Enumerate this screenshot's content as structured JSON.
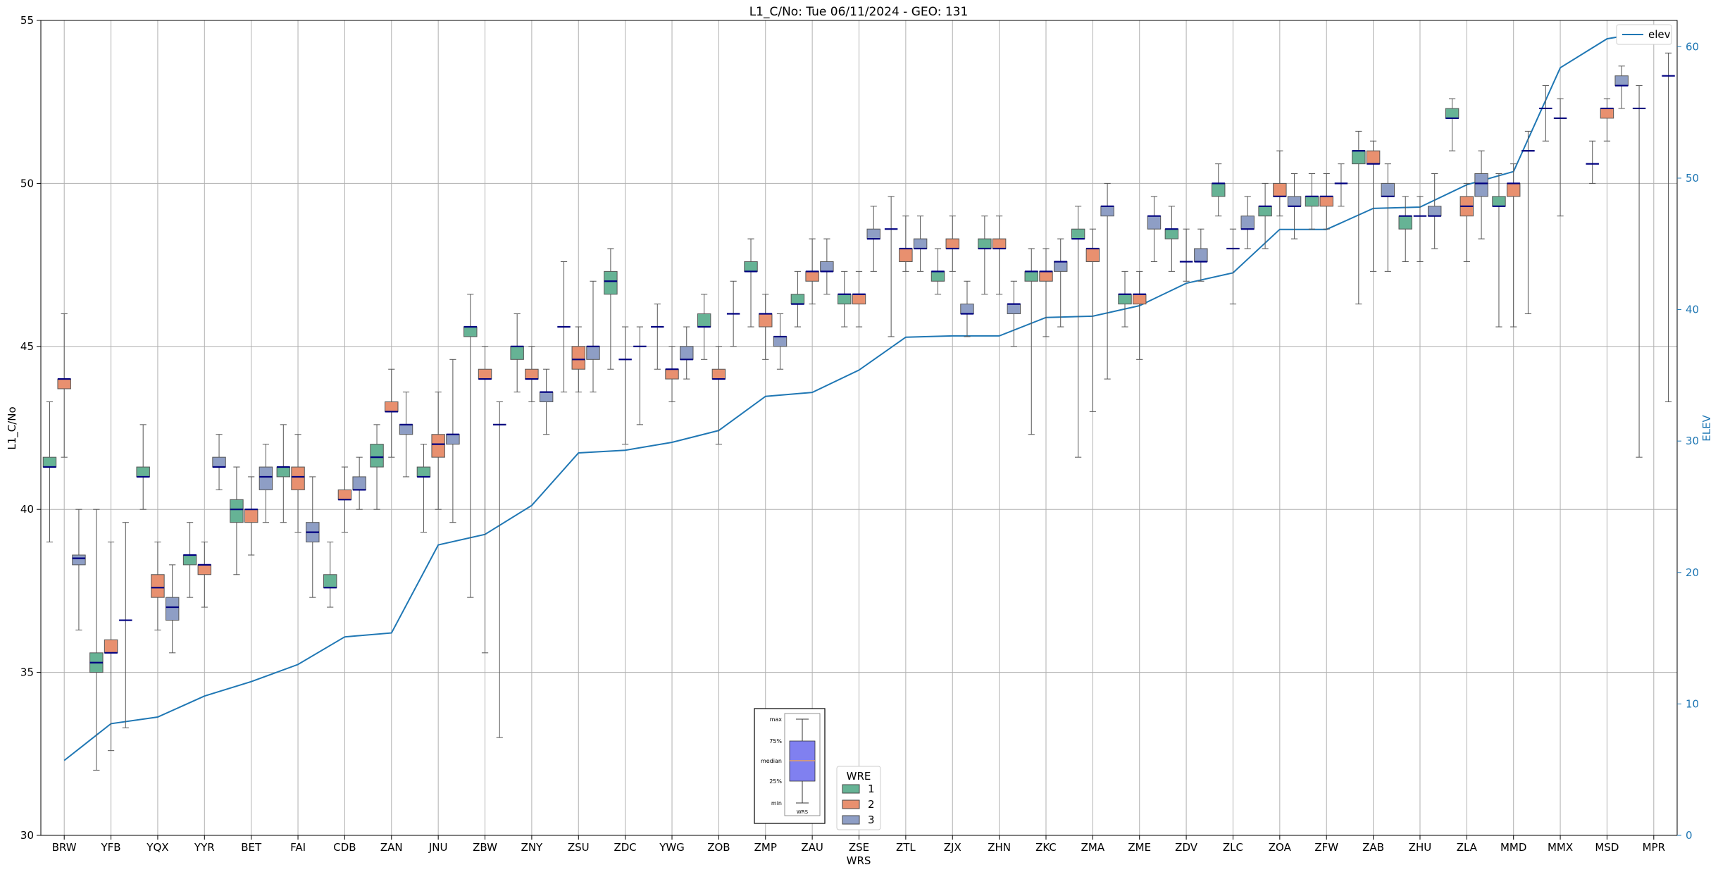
{
  "chart_data": {
    "type": "box",
    "title": "L1_C/No: Tue 06/11/2024 - GEO: 131",
    "xlabel": "WRS",
    "ylabel": "L1_C/No",
    "ylabel_right": "ELEV",
    "ylim": [
      30,
      55
    ],
    "ylim_right": [
      0,
      62
    ],
    "yticks": [
      30,
      35,
      40,
      45,
      50,
      55
    ],
    "yticks_right": [
      0,
      10,
      20,
      30,
      40,
      50,
      60
    ],
    "grid": true,
    "legend_line": {
      "label": "elev",
      "position": "top-right"
    },
    "legend_boxes": {
      "title": "WRE",
      "entries": [
        "1",
        "2",
        "3"
      ],
      "position": "bottom-center"
    },
    "colors": {
      "wre1": "#66b395",
      "wre2": "#e8906f",
      "wre3": "#8e9ec5",
      "median": "#000080",
      "elev": "#1f77b4",
      "whisker": "#555555"
    },
    "categories": [
      "BRW",
      "YFB",
      "YQX",
      "YYR",
      "BET",
      "FAI",
      "CDB",
      "ZAN",
      "JNU",
      "ZBW",
      "ZNY",
      "ZSU",
      "ZDC",
      "YWG",
      "ZOB",
      "ZMP",
      "ZAU",
      "ZSE",
      "ZTL",
      "ZJX",
      "ZHN",
      "ZKC",
      "ZMA",
      "ZME",
      "ZDV",
      "ZLC",
      "ZOA",
      "ZFW",
      "ZAB",
      "ZHU",
      "ZLA",
      "MMD",
      "MMX",
      "MSD",
      "MPR"
    ],
    "elev": [
      5.7,
      8.5,
      9.0,
      10.6,
      11.7,
      13.0,
      15.1,
      15.4,
      22.1,
      22.9,
      25.1,
      29.1,
      29.3,
      29.9,
      30.8,
      33.4,
      33.7,
      35.4,
      37.9,
      38.0,
      38.0,
      39.4,
      39.5,
      40.3,
      42.0,
      42.8,
      46.1,
      46.1,
      47.7,
      47.8,
      49.5,
      50.5,
      58.4,
      60.6,
      61.2
    ],
    "boxes": [
      {
        "station": "BRW",
        "wre": 1,
        "min": 39.0,
        "q1": 41.3,
        "median": 41.3,
        "q3": 41.6,
        "max": 43.3
      },
      {
        "station": "BRW",
        "wre": 2,
        "min": 41.6,
        "q1": 43.7,
        "median": 44.0,
        "q3": 44.0,
        "max": 46.0
      },
      {
        "station": "BRW",
        "wre": 3,
        "min": 36.3,
        "q1": 38.3,
        "median": 38.5,
        "q3": 38.6,
        "max": 40.0
      },
      {
        "station": "YFB",
        "wre": 1,
        "min": 32.0,
        "q1": 35.0,
        "median": 35.3,
        "q3": 35.6,
        "max": 40.0
      },
      {
        "station": "YFB",
        "wre": 2,
        "min": 32.6,
        "q1": 35.6,
        "median": 35.6,
        "q3": 36.0,
        "max": 39.0
      },
      {
        "station": "YFB",
        "wre": 3,
        "min": 33.3,
        "q1": 36.6,
        "median": 36.6,
        "q3": 36.6,
        "max": 39.6
      },
      {
        "station": "YQX",
        "wre": 1,
        "min": 40.0,
        "q1": 41.0,
        "median": 41.0,
        "q3": 41.3,
        "max": 42.6
      },
      {
        "station": "YQX",
        "wre": 2,
        "min": 36.3,
        "q1": 37.3,
        "median": 37.6,
        "q3": 38.0,
        "max": 39.0
      },
      {
        "station": "YQX",
        "wre": 3,
        "min": 35.6,
        "q1": 36.6,
        "median": 37.0,
        "q3": 37.3,
        "max": 38.3
      },
      {
        "station": "YYR",
        "wre": 1,
        "min": 37.3,
        "q1": 38.3,
        "median": 38.6,
        "q3": 38.6,
        "max": 39.6
      },
      {
        "station": "YYR",
        "wre": 2,
        "min": 37.0,
        "q1": 38.0,
        "median": 38.3,
        "q3": 38.3,
        "max": 39.0
      },
      {
        "station": "YYR",
        "wre": 3,
        "min": 40.6,
        "q1": 41.3,
        "median": 41.3,
        "q3": 41.6,
        "max": 42.3
      },
      {
        "station": "BET",
        "wre": 1,
        "min": 38.0,
        "q1": 39.6,
        "median": 40.0,
        "q3": 40.3,
        "max": 41.3
      },
      {
        "station": "BET",
        "wre": 2,
        "min": 38.6,
        "q1": 39.6,
        "median": 40.0,
        "q3": 40.0,
        "max": 41.0
      },
      {
        "station": "BET",
        "wre": 3,
        "min": 39.6,
        "q1": 40.6,
        "median": 41.0,
        "q3": 41.3,
        "max": 42.0
      },
      {
        "station": "FAI",
        "wre": 1,
        "min": 39.6,
        "q1": 41.0,
        "median": 41.3,
        "q3": 41.3,
        "max": 42.6
      },
      {
        "station": "FAI",
        "wre": 2,
        "min": 39.3,
        "q1": 40.6,
        "median": 41.0,
        "q3": 41.3,
        "max": 42.3
      },
      {
        "station": "FAI",
        "wre": 3,
        "min": 37.3,
        "q1": 39.0,
        "median": 39.3,
        "q3": 39.6,
        "max": 41.0
      },
      {
        "station": "CDB",
        "wre": 1,
        "min": 37.0,
        "q1": 37.6,
        "median": 37.6,
        "q3": 38.0,
        "max": 39.0
      },
      {
        "station": "CDB",
        "wre": 2,
        "min": 39.3,
        "q1": 40.3,
        "median": 40.3,
        "q3": 40.6,
        "max": 41.3
      },
      {
        "station": "CDB",
        "wre": 3,
        "min": 40.0,
        "q1": 40.6,
        "median": 40.6,
        "q3": 41.0,
        "max": 41.6
      },
      {
        "station": "ZAN",
        "wre": 1,
        "min": 40.0,
        "q1": 41.3,
        "median": 41.6,
        "q3": 42.0,
        "max": 42.6
      },
      {
        "station": "ZAN",
        "wre": 2,
        "min": 41.6,
        "q1": 43.0,
        "median": 43.0,
        "q3": 43.3,
        "max": 44.3
      },
      {
        "station": "ZAN",
        "wre": 3,
        "min": 41.0,
        "q1": 42.3,
        "median": 42.6,
        "q3": 42.6,
        "max": 43.6
      },
      {
        "station": "JNU",
        "wre": 1,
        "min": 39.3,
        "q1": 41.0,
        "median": 41.0,
        "q3": 41.3,
        "max": 42.0
      },
      {
        "station": "JNU",
        "wre": 2,
        "min": 40.0,
        "q1": 41.6,
        "median": 42.0,
        "q3": 42.3,
        "max": 43.6
      },
      {
        "station": "JNU",
        "wre": 3,
        "min": 39.6,
        "q1": 42.0,
        "median": 42.3,
        "q3": 42.3,
        "max": 44.6
      },
      {
        "station": "ZBW",
        "wre": 1,
        "min": 37.3,
        "q1": 45.3,
        "median": 45.6,
        "q3": 45.6,
        "max": 46.6
      },
      {
        "station": "ZBW",
        "wre": 2,
        "min": 35.6,
        "q1": 44.0,
        "median": 44.0,
        "q3": 44.3,
        "max": 45.0
      },
      {
        "station": "ZBW",
        "wre": 3,
        "min": 33.0,
        "q1": 42.6,
        "median": 42.6,
        "q3": 42.6,
        "max": 43.3
      },
      {
        "station": "ZNY",
        "wre": 1,
        "min": 43.6,
        "q1": 44.6,
        "median": 45.0,
        "q3": 45.0,
        "max": 46.0
      },
      {
        "station": "ZNY",
        "wre": 2,
        "min": 43.3,
        "q1": 44.0,
        "median": 44.0,
        "q3": 44.3,
        "max": 45.0
      },
      {
        "station": "ZNY",
        "wre": 3,
        "min": 42.3,
        "q1": 43.3,
        "median": 43.6,
        "q3": 43.6,
        "max": 44.3
      },
      {
        "station": "ZSU",
        "wre": 1,
        "min": 43.6,
        "q1": 45.6,
        "median": 45.6,
        "q3": 45.6,
        "max": 47.6
      },
      {
        "station": "ZSU",
        "wre": 2,
        "min": 43.6,
        "q1": 44.3,
        "median": 44.6,
        "q3": 45.0,
        "max": 45.6
      },
      {
        "station": "ZSU",
        "wre": 3,
        "min": 43.6,
        "q1": 44.6,
        "median": 45.0,
        "q3": 45.0,
        "max": 47.0
      },
      {
        "station": "ZDC",
        "wre": 1,
        "min": 44.3,
        "q1": 46.6,
        "median": 47.0,
        "q3": 47.3,
        "max": 48.0
      },
      {
        "station": "ZDC",
        "wre": 2,
        "min": 42.0,
        "q1": 44.6,
        "median": 44.6,
        "q3": 44.6,
        "max": 45.6
      },
      {
        "station": "ZDC",
        "wre": 3,
        "min": 42.6,
        "q1": 45.0,
        "median": 45.0,
        "q3": 45.0,
        "max": 45.6
      },
      {
        "station": "YWG",
        "wre": 1,
        "min": 44.3,
        "q1": 45.6,
        "median": 45.6,
        "q3": 45.6,
        "max": 46.3
      },
      {
        "station": "YWG",
        "wre": 2,
        "min": 43.3,
        "q1": 44.0,
        "median": 44.3,
        "q3": 44.3,
        "max": 45.0
      },
      {
        "station": "YWG",
        "wre": 3,
        "min": 44.0,
        "q1": 44.6,
        "median": 44.6,
        "q3": 45.0,
        "max": 45.6
      },
      {
        "station": "ZOB",
        "wre": 1,
        "min": 44.6,
        "q1": 45.6,
        "median": 45.6,
        "q3": 46.0,
        "max": 46.6
      },
      {
        "station": "ZOB",
        "wre": 2,
        "min": 42.0,
        "q1": 44.0,
        "median": 44.0,
        "q3": 44.3,
        "max": 45.0
      },
      {
        "station": "ZOB",
        "wre": 3,
        "min": 45.0,
        "q1": 46.0,
        "median": 46.0,
        "q3": 46.0,
        "max": 47.0
      },
      {
        "station": "ZMP",
        "wre": 1,
        "min": 45.6,
        "q1": 47.3,
        "median": 47.3,
        "q3": 47.6,
        "max": 48.3
      },
      {
        "station": "ZMP",
        "wre": 2,
        "min": 44.6,
        "q1": 45.6,
        "median": 46.0,
        "q3": 46.0,
        "max": 46.6
      },
      {
        "station": "ZMP",
        "wre": 3,
        "min": 44.3,
        "q1": 45.0,
        "median": 45.3,
        "q3": 45.3,
        "max": 46.0
      },
      {
        "station": "ZAU",
        "wre": 1,
        "min": 45.6,
        "q1": 46.3,
        "median": 46.3,
        "q3": 46.6,
        "max": 47.3
      },
      {
        "station": "ZAU",
        "wre": 2,
        "min": 46.3,
        "q1": 47.0,
        "median": 47.3,
        "q3": 47.3,
        "max": 48.3
      },
      {
        "station": "ZAU",
        "wre": 3,
        "min": 46.6,
        "q1": 47.3,
        "median": 47.3,
        "q3": 47.6,
        "max": 48.3
      },
      {
        "station": "ZSE",
        "wre": 1,
        "min": 45.6,
        "q1": 46.3,
        "median": 46.6,
        "q3": 46.6,
        "max": 47.3
      },
      {
        "station": "ZSE",
        "wre": 2,
        "min": 45.6,
        "q1": 46.3,
        "median": 46.6,
        "q3": 46.6,
        "max": 47.3
      },
      {
        "station": "ZSE",
        "wre": 3,
        "min": 47.3,
        "q1": 48.3,
        "median": 48.3,
        "q3": 48.6,
        "max": 49.3
      },
      {
        "station": "ZTL",
        "wre": 1,
        "min": 45.3,
        "q1": 48.6,
        "median": 48.6,
        "q3": 48.6,
        "max": 49.6
      },
      {
        "station": "ZTL",
        "wre": 2,
        "min": 47.3,
        "q1": 47.6,
        "median": 48.0,
        "q3": 48.0,
        "max": 49.0
      },
      {
        "station": "ZTL",
        "wre": 3,
        "min": 47.3,
        "q1": 48.0,
        "median": 48.0,
        "q3": 48.3,
        "max": 49.0
      },
      {
        "station": "ZJX",
        "wre": 1,
        "min": 46.6,
        "q1": 47.0,
        "median": 47.3,
        "q3": 47.3,
        "max": 48.0
      },
      {
        "station": "ZJX",
        "wre": 2,
        "min": 47.3,
        "q1": 48.0,
        "median": 48.0,
        "q3": 48.3,
        "max": 49.0
      },
      {
        "station": "ZJX",
        "wre": 3,
        "min": 45.3,
        "q1": 46.0,
        "median": 46.0,
        "q3": 46.3,
        "max": 47.0
      },
      {
        "station": "ZHN",
        "wre": 1,
        "min": 46.6,
        "q1": 48.0,
        "median": 48.0,
        "q3": 48.3,
        "max": 49.0
      },
      {
        "station": "ZHN",
        "wre": 2,
        "min": 46.6,
        "q1": 48.0,
        "median": 48.0,
        "q3": 48.3,
        "max": 49.0
      },
      {
        "station": "ZHN",
        "wre": 3,
        "min": 45.0,
        "q1": 46.0,
        "median": 46.3,
        "q3": 46.3,
        "max": 47.0
      },
      {
        "station": "ZKC",
        "wre": 1,
        "min": 42.3,
        "q1": 47.0,
        "median": 47.3,
        "q3": 47.3,
        "max": 48.0
      },
      {
        "station": "ZKC",
        "wre": 2,
        "min": 45.3,
        "q1": 47.0,
        "median": 47.3,
        "q3": 47.3,
        "max": 48.0
      },
      {
        "station": "ZKC",
        "wre": 3,
        "min": 45.6,
        "q1": 47.3,
        "median": 47.6,
        "q3": 47.6,
        "max": 48.3
      },
      {
        "station": "ZMA",
        "wre": 1,
        "min": 41.6,
        "q1": 48.3,
        "median": 48.3,
        "q3": 48.6,
        "max": 49.3
      },
      {
        "station": "ZMA",
        "wre": 2,
        "min": 43.0,
        "q1": 47.6,
        "median": 48.0,
        "q3": 48.0,
        "max": 48.6
      },
      {
        "station": "ZMA",
        "wre": 3,
        "min": 44.0,
        "q1": 49.0,
        "median": 49.3,
        "q3": 49.3,
        "max": 50.0
      },
      {
        "station": "ZME",
        "wre": 1,
        "min": 45.6,
        "q1": 46.3,
        "median": 46.6,
        "q3": 46.6,
        "max": 47.3
      },
      {
        "station": "ZME",
        "wre": 2,
        "min": 44.6,
        "q1": 46.3,
        "median": 46.6,
        "q3": 46.6,
        "max": 47.3
      },
      {
        "station": "ZME",
        "wre": 3,
        "min": 47.6,
        "q1": 48.6,
        "median": 49.0,
        "q3": 49.0,
        "max": 49.6
      },
      {
        "station": "ZDV",
        "wre": 1,
        "min": 47.3,
        "q1": 48.3,
        "median": 48.6,
        "q3": 48.6,
        "max": 49.3
      },
      {
        "station": "ZDV",
        "wre": 2,
        "min": 47.0,
        "q1": 47.6,
        "median": 47.6,
        "q3": 47.6,
        "max": 48.6
      },
      {
        "station": "ZDV",
        "wre": 3,
        "min": 47.0,
        "q1": 47.6,
        "median": 47.6,
        "q3": 48.0,
        "max": 48.6
      },
      {
        "station": "ZLC",
        "wre": 1,
        "min": 49.0,
        "q1": 49.6,
        "median": 50.0,
        "q3": 50.0,
        "max": 50.6
      },
      {
        "station": "ZLC",
        "wre": 2,
        "min": 46.3,
        "q1": 48.0,
        "median": 48.0,
        "q3": 48.0,
        "max": 48.6
      },
      {
        "station": "ZLC",
        "wre": 3,
        "min": 48.0,
        "q1": 48.6,
        "median": 48.6,
        "q3": 49.0,
        "max": 49.6
      },
      {
        "station": "ZOA",
        "wre": 1,
        "min": 48.0,
        "q1": 49.0,
        "median": 49.3,
        "q3": 49.3,
        "max": 50.0
      },
      {
        "station": "ZOA",
        "wre": 2,
        "min": 49.0,
        "q1": 49.6,
        "median": 49.6,
        "q3": 50.0,
        "max": 51.0
      },
      {
        "station": "ZOA",
        "wre": 3,
        "min": 48.3,
        "q1": 49.3,
        "median": 49.3,
        "q3": 49.6,
        "max": 50.3
      },
      {
        "station": "ZFW",
        "wre": 1,
        "min": 48.6,
        "q1": 49.3,
        "median": 49.6,
        "q3": 49.6,
        "max": 50.3
      },
      {
        "station": "ZFW",
        "wre": 2,
        "min": 48.6,
        "q1": 49.3,
        "median": 49.6,
        "q3": 49.6,
        "max": 50.3
      },
      {
        "station": "ZFW",
        "wre": 3,
        "min": 49.3,
        "q1": 50.0,
        "median": 50.0,
        "q3": 50.0,
        "max": 50.6
      },
      {
        "station": "ZAB",
        "wre": 1,
        "min": 46.3,
        "q1": 50.6,
        "median": 51.0,
        "q3": 51.0,
        "max": 51.6
      },
      {
        "station": "ZAB",
        "wre": 2,
        "min": 47.3,
        "q1": 50.6,
        "median": 50.6,
        "q3": 51.0,
        "max": 51.3
      },
      {
        "station": "ZAB",
        "wre": 3,
        "min": 47.3,
        "q1": 49.6,
        "median": 49.6,
        "q3": 50.0,
        "max": 50.6
      },
      {
        "station": "ZHU",
        "wre": 1,
        "min": 47.6,
        "q1": 48.6,
        "median": 49.0,
        "q3": 49.0,
        "max": 49.6
      },
      {
        "station": "ZHU",
        "wre": 2,
        "min": 47.6,
        "q1": 49.0,
        "median": 49.0,
        "q3": 49.0,
        "max": 49.6
      },
      {
        "station": "ZHU",
        "wre": 3,
        "min": 48.0,
        "q1": 49.0,
        "median": 49.0,
        "q3": 49.3,
        "max": 50.3
      },
      {
        "station": "ZLA",
        "wre": 1,
        "min": 51.0,
        "q1": 52.0,
        "median": 52.0,
        "q3": 52.3,
        "max": 52.6
      },
      {
        "station": "ZLA",
        "wre": 2,
        "min": 47.6,
        "q1": 49.0,
        "median": 49.3,
        "q3": 49.6,
        "max": 50.0
      },
      {
        "station": "ZLA",
        "wre": 3,
        "min": 48.3,
        "q1": 49.6,
        "median": 50.0,
        "q3": 50.3,
        "max": 51.0
      },
      {
        "station": "MMD",
        "wre": 1,
        "min": 45.6,
        "q1": 49.3,
        "median": 49.3,
        "q3": 49.6,
        "max": 50.3
      },
      {
        "station": "MMD",
        "wre": 2,
        "min": 45.6,
        "q1": 49.6,
        "median": 50.0,
        "q3": 50.0,
        "max": 50.6
      },
      {
        "station": "MMD",
        "wre": 3,
        "min": 46.0,
        "q1": 51.0,
        "median": 51.0,
        "q3": 51.0,
        "max": 51.6
      },
      {
        "station": "MMX",
        "wre": 1,
        "min": 51.3,
        "q1": 52.3,
        "median": 52.3,
        "q3": 52.3,
        "max": 53.0
      },
      {
        "station": "MMX",
        "wre": 2,
        "min": 49.0,
        "q1": 52.0,
        "median": 52.0,
        "q3": 52.0,
        "max": 52.6
      },
      {
        "station": "MSD",
        "wre": 1,
        "min": 50.0,
        "q1": 50.6,
        "median": 50.6,
        "q3": 50.6,
        "max": 51.3
      },
      {
        "station": "MSD",
        "wre": 2,
        "min": 51.3,
        "q1": 52.0,
        "median": 52.3,
        "q3": 52.3,
        "max": 52.6
      },
      {
        "station": "MSD",
        "wre": 3,
        "min": 52.3,
        "q1": 53.0,
        "median": 53.0,
        "q3": 53.3,
        "max": 53.6
      },
      {
        "station": "MPR",
        "wre": 1,
        "min": 41.6,
        "q1": 52.3,
        "median": 52.3,
        "q3": 52.3,
        "max": 53.0
      },
      {
        "station": "MPR",
        "wre": 3,
        "min": 43.3,
        "q1": 53.3,
        "median": 53.3,
        "q3": 53.3,
        "max": 54.0
      }
    ],
    "inset": {
      "labels": [
        "max",
        "75%",
        "median",
        "25%",
        "min"
      ],
      "xlabel": "WRS",
      "colors": {
        "box": "#8080f0",
        "median": "#e8a060"
      }
    }
  }
}
